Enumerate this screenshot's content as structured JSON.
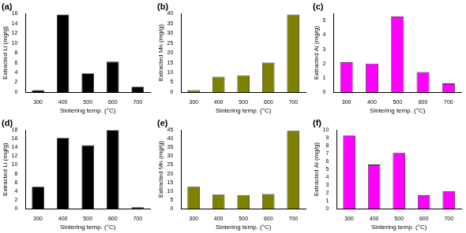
{
  "chart_data": [
    {
      "type": "bar",
      "title": "(a)",
      "x_label": "Sintering temp. (°C)",
      "y_label": "Extracted Li (mg/g)",
      "categories": [
        "300",
        "400",
        "500",
        "600",
        "700"
      ],
      "values": [
        0.4,
        15.8,
        3.8,
        6.2,
        1.1
      ],
      "color": "#000000",
      "ylim": [
        0,
        16
      ],
      "yticks": [
        0,
        2,
        4,
        6,
        8,
        10,
        12,
        14,
        16
      ],
      "grid": false
    },
    {
      "type": "bar",
      "title": "(b)",
      "x_label": "Sintering temp. (°C)",
      "y_label": "Extracted Mn (mg/g)",
      "categories": [
        "300",
        "400",
        "500",
        "600",
        "700"
      ],
      "values": [
        1.0,
        7.8,
        8.5,
        15.0,
        39.5
      ],
      "color": "#7f7f00",
      "ylim": [
        0,
        40
      ],
      "yticks": [
        0,
        5,
        10,
        15,
        20,
        25,
        30,
        35,
        40
      ],
      "grid": false
    },
    {
      "type": "bar",
      "title": "(c)",
      "x_label": "Sintering temp. (°C)",
      "y_label": "Extracted Al (mg/g)",
      "categories": [
        "300",
        "400",
        "500",
        "600",
        "700"
      ],
      "values": [
        2.1,
        2.0,
        5.3,
        1.4,
        0.6
      ],
      "color": "#ff00ff",
      "ylim": [
        0,
        5.5
      ],
      "yticks": [
        0,
        1,
        2,
        3,
        4,
        5
      ],
      "grid": false
    },
    {
      "type": "bar",
      "title": "(d)",
      "x_label": "Sintering temp. (°C)",
      "y_label": "Extracted Li (mg/g)",
      "categories": [
        "300",
        "400",
        "500",
        "600",
        "700"
      ],
      "values": [
        5.0,
        16.2,
        14.5,
        18.0,
        0.3
      ],
      "color": "#000000",
      "ylim": [
        0,
        18
      ],
      "yticks": [
        0,
        2,
        4,
        6,
        8,
        10,
        12,
        14,
        16,
        18
      ],
      "grid": false
    },
    {
      "type": "bar",
      "title": "(e)",
      "x_label": "Sintering temp. (°C)",
      "y_label": "Extracted Mn (mg/g)",
      "categories": [
        "300",
        "400",
        "500",
        "600",
        "700"
      ],
      "values": [
        12.5,
        8.0,
        7.8,
        8.3,
        44.5
      ],
      "color": "#7f7f00",
      "ylim": [
        0,
        45
      ],
      "yticks": [
        0,
        5,
        10,
        15,
        20,
        25,
        30,
        35,
        40,
        45
      ],
      "grid": false
    },
    {
      "type": "bar",
      "title": "(f)",
      "x_label": "Sintering temp. (°C)",
      "y_label": "Extracted Al (mg/g)",
      "categories": [
        "300",
        "400",
        "500",
        "600",
        "700"
      ],
      "values": [
        9.3,
        5.6,
        7.1,
        1.7,
        2.2
      ],
      "color": "#ff00ff",
      "ylim": [
        0,
        10
      ],
      "yticks": [
        0,
        1,
        2,
        3,
        4,
        5,
        6,
        7,
        8,
        9,
        10
      ],
      "grid": false
    }
  ]
}
